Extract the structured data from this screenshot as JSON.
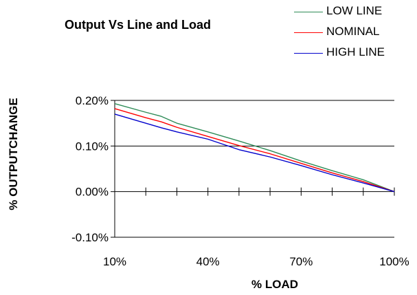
{
  "chart_data": {
    "type": "line",
    "title": "Output Vs Line and Load",
    "xlabel": "% LOAD",
    "ylabel": "% OUTPUTCHANGE",
    "x": [
      10,
      20,
      25,
      30,
      40,
      50,
      60,
      70,
      80,
      90,
      100
    ],
    "xlim": [
      10,
      100
    ],
    "ylim": [
      -0.1,
      0.2
    ],
    "x_ticks": [
      "10%",
      "40%",
      "70%",
      "100%"
    ],
    "y_ticks": [
      "-0.10%",
      "0.00%",
      "0.10%",
      "0.20%"
    ],
    "x_tick_values": [
      10,
      40,
      70,
      100
    ],
    "y_tick_values": [
      -0.1,
      0.0,
      0.1,
      0.2
    ],
    "grid": "horizontal",
    "legend_position": "top-right",
    "series": [
      {
        "name": "LOW LINE",
        "color": "#2E8B57",
        "values": [
          0.193,
          0.174,
          0.165,
          0.15,
          0.131,
          0.111,
          0.09,
          0.067,
          0.046,
          0.026,
          0.0
        ]
      },
      {
        "name": "NOMINAL",
        "color": "#FF0000",
        "values": [
          0.182,
          0.162,
          0.153,
          0.141,
          0.121,
          0.101,
          0.083,
          0.062,
          0.041,
          0.022,
          0.0
        ]
      },
      {
        "name": "HIGH LINE",
        "color": "#0000CC",
        "values": [
          0.17,
          0.15,
          0.14,
          0.131,
          0.115,
          0.092,
          0.076,
          0.057,
          0.037,
          0.019,
          0.0
        ]
      }
    ]
  }
}
